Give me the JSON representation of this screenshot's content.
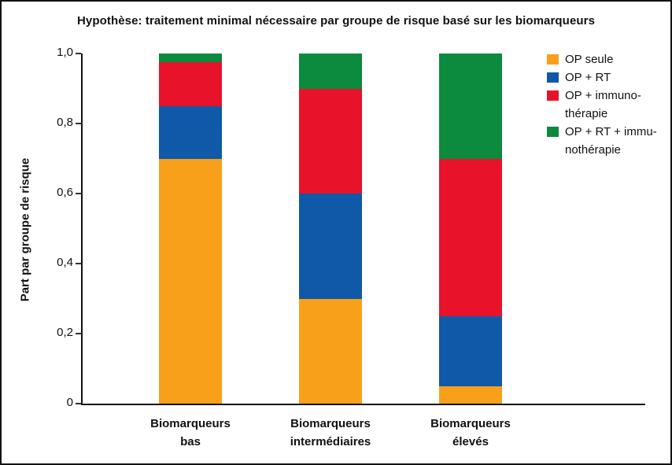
{
  "chart_data": {
    "type": "bar",
    "stacked": true,
    "title": "Hypothèse: traitement minimal nécessaire par groupe de risque basé sur les biomarqueurs",
    "xlabel": "",
    "ylabel": "Part par groupe de risque",
    "ylim": [
      0,
      1.0
    ],
    "ytick_values": [
      0,
      0.2,
      0.4,
      0.6,
      0.8,
      1.0
    ],
    "ytick_labels": [
      "0",
      "0,2",
      "0,4",
      "0,6",
      "0,8",
      "1,0"
    ],
    "grid": false,
    "categories": [
      "Biomarqueurs bas",
      "Biomarqueurs intermédiaires",
      "Biomarqueurs élevés"
    ],
    "category_label_lines": [
      [
        "Biomarqueurs",
        "bas"
      ],
      [
        "Biomarqueurs",
        "intermédiaires"
      ],
      [
        "Biomarqueurs",
        "élevés"
      ]
    ],
    "series": [
      {
        "name": "OP seule",
        "color": "#F9A01B",
        "values": [
          0.7,
          0.3,
          0.05
        ]
      },
      {
        "name": "OP + RT",
        "color": "#0F59A8",
        "values": [
          0.15,
          0.3,
          0.2
        ]
      },
      {
        "name": "OP + immunothérapie",
        "color": "#E8132B",
        "values": [
          0.125,
          0.3,
          0.45
        ]
      },
      {
        "name": "OP + RT + immunothérapie",
        "color": "#0C8A3E",
        "values": [
          0.025,
          0.1,
          0.3
        ]
      }
    ],
    "legend": {
      "position": "top-right",
      "entries": [
        {
          "lines": [
            "OP seule"
          ],
          "color": "#F9A01B"
        },
        {
          "lines": [
            "OP + RT"
          ],
          "color": "#0F59A8"
        },
        {
          "lines": [
            "OP + immuno-",
            "thérapie"
          ],
          "color": "#E8132B"
        },
        {
          "lines": [
            "OP + RT + immu-",
            "nothérapie"
          ],
          "color": "#0C8A3E"
        }
      ]
    },
    "axis_color": "#111111",
    "background_color": "#ffffff"
  }
}
